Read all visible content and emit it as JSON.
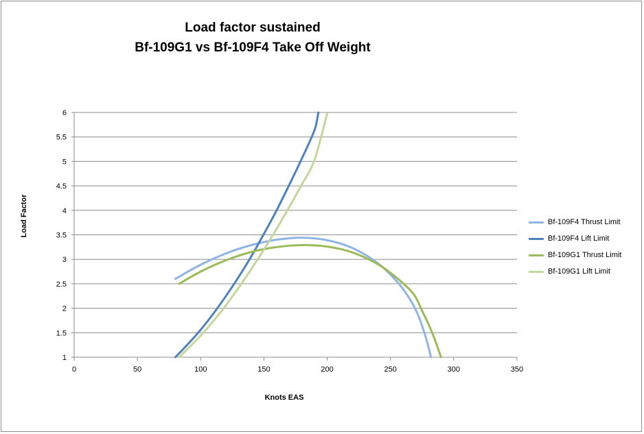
{
  "chart_data": {
    "type": "line",
    "title": [
      "Load factor sustained",
      "Bf-109G1 vs Bf-109F4 Take Off Weight"
    ],
    "xlabel": "Knots EAS",
    "ylabel": "Load Factor",
    "xlim": [
      0,
      350
    ],
    "ylim": [
      1,
      6
    ],
    "xticks": [
      0,
      50,
      100,
      150,
      200,
      250,
      300,
      350
    ],
    "yticks": [
      1,
      1.5,
      2,
      2.5,
      3,
      3.5,
      4,
      4.5,
      5,
      5.5,
      6
    ],
    "ytick_labels": [
      "1",
      "1.5",
      "2",
      "2.5",
      "3",
      "3.5",
      "4",
      "4.5",
      "5",
      "5.5",
      "6"
    ],
    "grid": "horizontal",
    "legend_position": "right",
    "series": [
      {
        "name": "Bf-109F4 Thrust Limit",
        "color": "#8fb4e3",
        "x": [
          80,
          100,
          120,
          140,
          160,
          180,
          200,
          220,
          240,
          255,
          265,
          272,
          278,
          282
        ],
        "y": [
          2.6,
          2.89,
          3.12,
          3.29,
          3.4,
          3.44,
          3.39,
          3.23,
          2.92,
          2.55,
          2.2,
          1.85,
          1.4,
          1.0
        ]
      },
      {
        "name": "Bf-109F4 Lift Limit",
        "color": "#4f81bd",
        "x": [
          80,
          90,
          100,
          110,
          120,
          130,
          140,
          150,
          160,
          170,
          180,
          190,
          193
        ],
        "y": [
          1.0,
          1.27,
          1.56,
          1.89,
          2.25,
          2.64,
          3.06,
          3.52,
          4.0,
          4.52,
          5.06,
          5.64,
          6.0
        ]
      },
      {
        "name": "Bf-109G1 Thrust Limit",
        "color": "#9bbb59",
        "x": [
          83,
          100,
          120,
          140,
          160,
          180,
          200,
          220,
          240,
          255,
          268,
          275,
          283,
          290
        ],
        "y": [
          2.5,
          2.75,
          2.98,
          3.15,
          3.25,
          3.29,
          3.26,
          3.14,
          2.9,
          2.62,
          2.3,
          1.95,
          1.5,
          1.0
        ]
      },
      {
        "name": "Bf-109G1 Lift Limit",
        "color": "#c3d69b",
        "x": [
          83,
          100,
          110,
          120,
          130,
          140,
          150,
          160,
          170,
          180,
          190,
          200
        ],
        "y": [
          1.0,
          1.44,
          1.74,
          2.06,
          2.42,
          2.8,
          3.2,
          3.62,
          4.07,
          4.53,
          5.03,
          5.98
        ]
      }
    ]
  }
}
